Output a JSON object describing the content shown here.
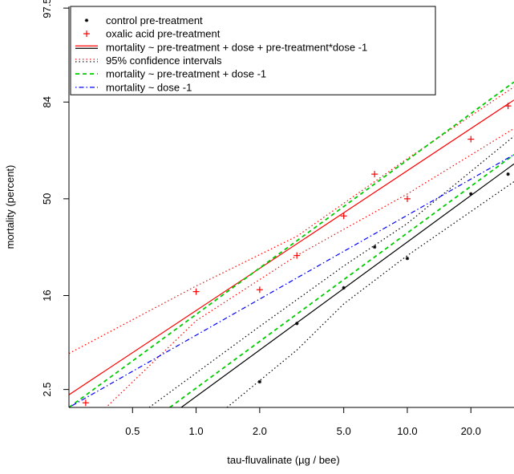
{
  "chart_data": {
    "type": "scatter",
    "xlabel": "tau-fluvalinate (µg / bee)",
    "ylabel": "mortality (percent)",
    "x_scale": "log",
    "y_scale": "probit",
    "xlim": [
      0.25,
      32
    ],
    "ylim": [
      1.6,
      97.6
    ],
    "x_ticks": [
      {
        "value": 0.5,
        "label": "0.5"
      },
      {
        "value": 1.0,
        "label": "1.0"
      },
      {
        "value": 2.0,
        "label": "2.0"
      },
      {
        "value": 5.0,
        "label": "5.0"
      },
      {
        "value": 10.0,
        "label": "10.0"
      },
      {
        "value": 20.0,
        "label": "20.0"
      }
    ],
    "y_ticks": [
      {
        "value": 2.5,
        "label": "2.5"
      },
      {
        "value": 16,
        "label": "16"
      },
      {
        "value": 50,
        "label": "50"
      },
      {
        "value": 84,
        "label": "84"
      },
      {
        "value": 97.5,
        "label": "97.5"
      }
    ],
    "legend_position": "top-left",
    "legend": [
      {
        "label": "control pre-treatment",
        "kind": "point",
        "marker": "*",
        "color": "#000000"
      },
      {
        "label": "oxalic acid pre-treatment",
        "kind": "point",
        "marker": "+",
        "color": "#ff0000"
      },
      {
        "label": "mortality ~ pre-treatment + dose + pre-treatment*dose -1",
        "kind": "line",
        "style": "solid",
        "color": "#ff0000",
        "color2": "#000000"
      },
      {
        "label": "95% confidence intervals",
        "kind": "line",
        "style": "dotted",
        "color": "#ff0000",
        "color2": "#000000"
      },
      {
        "label": "mortality ~ pre-treatment + dose -1",
        "kind": "line",
        "style": "dashed",
        "color": "#00cc00"
      },
      {
        "label": "mortality ~ dose -1",
        "kind": "line",
        "style": "dotdash",
        "color": "#0000ff"
      }
    ],
    "series": [
      {
        "name": "control pre-treatment",
        "marker": "*",
        "color": "#000000",
        "x": [
          2.0,
          3.0,
          5.0,
          7.0,
          10.0,
          20.0,
          30.0
        ],
        "y": [
          3.0,
          10.0,
          18.0,
          31.0,
          27.0,
          52.0,
          60.0
        ]
      },
      {
        "name": "oxalic acid pre-treatment",
        "marker": "+",
        "color": "#ff0000",
        "x": [
          0.3,
          1.0,
          2.0,
          3.0,
          5.0,
          7.0,
          10.0,
          20.0,
          30.0
        ],
        "y": [
          1.8,
          17.0,
          17.5,
          28.0,
          43.0,
          60.0,
          50.0,
          73.0,
          83.0
        ]
      }
    ],
    "fit_lines": [
      {
        "name": "oxalic acid fit",
        "style": "solid",
        "color": "#ff0000",
        "x": [
          0.25,
          32
        ],
        "y": [
          2.2,
          84.5
        ]
      },
      {
        "name": "control fit",
        "style": "solid",
        "color": "#000000",
        "x": [
          0.85,
          32
        ],
        "y": [
          1.6,
          64.0
        ]
      },
      {
        "name": "oxalic acid CI upper",
        "style": "dotted",
        "color": "#ff0000",
        "x": [
          0.25,
          1.0,
          3.0,
          10.0,
          32
        ],
        "y": [
          5.6,
          18.5,
          35.0,
          66.0,
          87.5
        ]
      },
      {
        "name": "oxalic acid CI lower",
        "style": "dotted",
        "color": "#ff0000",
        "x": [
          0.25,
          1.0,
          3.0,
          10.0,
          32
        ],
        "y": [
          0.6,
          10.5,
          28.0,
          52.0,
          76.5
        ]
      },
      {
        "name": "control CI upper",
        "style": "dotted",
        "color": "#000000",
        "x": [
          0.6,
          2.0,
          5.0,
          10.0,
          32
        ],
        "y": [
          1.6,
          9.5,
          24.5,
          40.0,
          74.0
        ]
      },
      {
        "name": "control CI lower",
        "style": "dotted",
        "color": "#000000",
        "x": [
          1.4,
          3.0,
          5.0,
          10.0,
          32
        ],
        "y": [
          1.6,
          6.0,
          14.0,
          28.0,
          57.0
        ]
      },
      {
        "name": "mortality ~ pre-treatment + dose -1 (oxalic acid)",
        "style": "dashed",
        "color": "#00cc00",
        "x": [
          0.25,
          32
        ],
        "y": [
          1.6,
          88.5
        ]
      },
      {
        "name": "mortality ~ pre-treatment + dose -1 (control)",
        "style": "dashed",
        "color": "#00cc00",
        "x": [
          0.75,
          32
        ],
        "y": [
          1.6,
          67.5
        ]
      },
      {
        "name": "mortality ~ dose -1",
        "style": "dotdash",
        "color": "#0000ff",
        "x": [
          0.25,
          32
        ],
        "y": [
          1.6,
          67.5
        ]
      }
    ]
  }
}
